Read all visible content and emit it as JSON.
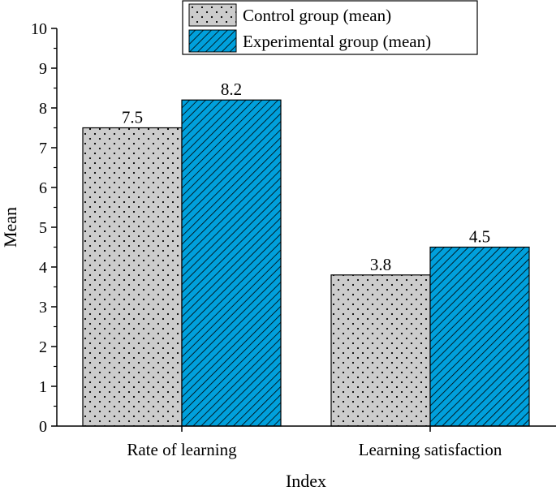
{
  "chart_data": {
    "type": "bar",
    "title": "",
    "xlabel": "Index",
    "ylabel": "Mean",
    "categories": [
      "Rate of learning",
      "Learning satisfaction"
    ],
    "series": [
      {
        "name": "Control group (mean)",
        "values": [
          7.5,
          3.8
        ],
        "color": "#cccccc",
        "pattern": "dots"
      },
      {
        "name": "Experimental group (mean)",
        "values": [
          8.2,
          4.5
        ],
        "color": "#00a0dc",
        "pattern": "diagonal-hatch"
      }
    ],
    "data_labels": [
      "7.5",
      "3.8",
      "8.2",
      "4.5"
    ],
    "ylim": [
      0,
      10
    ],
    "yticks": [
      "0",
      "1",
      "2",
      "3",
      "4",
      "5",
      "6",
      "7",
      "8",
      "9",
      "10"
    ],
    "grid": false,
    "legend_position": "top-right"
  }
}
